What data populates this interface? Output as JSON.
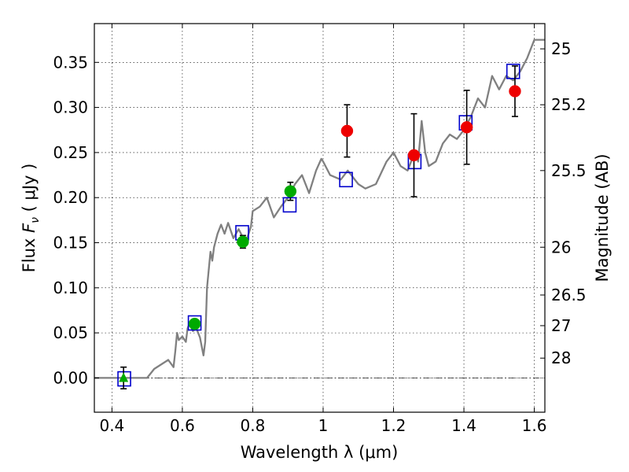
{
  "chart_data": {
    "type": "scatter",
    "xlabel": "Wavelength  λ (μm)",
    "ylabel_prefix": "Flux ",
    "ylabel_symbol": "F",
    "ylabel_subscript": "ν",
    "ylabel_suffix": "  ( μJy )",
    "y2label": "Magnitude (AB)",
    "xlim": [
      0.35,
      1.63
    ],
    "ylim": [
      -0.038,
      0.393
    ],
    "grid": true,
    "x_ticks": [
      {
        "value": 0.4,
        "label": "0.4"
      },
      {
        "value": 0.6,
        "label": "0.6"
      },
      {
        "value": 0.8,
        "label": "0.8"
      },
      {
        "value": 1.0,
        "label": "1"
      },
      {
        "value": 1.2,
        "label": "1.2"
      },
      {
        "value": 1.4,
        "label": "1.4"
      },
      {
        "value": 1.6,
        "label": "1.6"
      }
    ],
    "y_ticks": [
      {
        "value": 0.0,
        "label": "0.00"
      },
      {
        "value": 0.05,
        "label": "0.05"
      },
      {
        "value": 0.1,
        "label": "0.10"
      },
      {
        "value": 0.15,
        "label": "0.15"
      },
      {
        "value": 0.2,
        "label": "0.20"
      },
      {
        "value": 0.25,
        "label": "0.25"
      },
      {
        "value": 0.3,
        "label": "0.30"
      },
      {
        "value": 0.35,
        "label": "0.35"
      }
    ],
    "y2_ticks": [
      {
        "label": "25",
        "flux": 0.365
      },
      {
        "label": "25.2",
        "flux": 0.303
      },
      {
        "label": "25.5",
        "flux": 0.23
      },
      {
        "label": "26",
        "flux": 0.145
      },
      {
        "label": "26.5",
        "flux": 0.092
      },
      {
        "label": "27",
        "flux": 0.058
      },
      {
        "label": "28",
        "flux": 0.022
      }
    ],
    "zero_line": 0.0,
    "series": [
      {
        "name": "Model spectrum",
        "kind": "line",
        "color": "#808080",
        "x": [
          0.35,
          0.5,
          0.52,
          0.56,
          0.575,
          0.58,
          0.585,
          0.59,
          0.6,
          0.61,
          0.615,
          0.62,
          0.63,
          0.64,
          0.65,
          0.66,
          0.665,
          0.67,
          0.68,
          0.685,
          0.69,
          0.7,
          0.71,
          0.72,
          0.73,
          0.745,
          0.76,
          0.78,
          0.795,
          0.8,
          0.82,
          0.84,
          0.86,
          0.88,
          0.9,
          0.92,
          0.94,
          0.96,
          0.98,
          0.995,
          1.0,
          1.02,
          1.05,
          1.07,
          1.1,
          1.12,
          1.15,
          1.18,
          1.2,
          1.22,
          1.24,
          1.26,
          1.27,
          1.28,
          1.29,
          1.3,
          1.32,
          1.34,
          1.36,
          1.38,
          1.4,
          1.42,
          1.44,
          1.46,
          1.48,
          1.5,
          1.52,
          1.54,
          1.56,
          1.58,
          1.6,
          1.63
        ],
        "y": [
          0.0,
          0.0,
          0.01,
          0.02,
          0.012,
          0.03,
          0.05,
          0.042,
          0.046,
          0.04,
          0.055,
          0.06,
          0.052,
          0.055,
          0.045,
          0.025,
          0.04,
          0.1,
          0.14,
          0.13,
          0.145,
          0.16,
          0.17,
          0.16,
          0.172,
          0.155,
          0.165,
          0.15,
          0.168,
          0.185,
          0.19,
          0.2,
          0.178,
          0.19,
          0.2,
          0.215,
          0.225,
          0.205,
          0.23,
          0.243,
          0.24,
          0.225,
          0.22,
          0.23,
          0.215,
          0.21,
          0.215,
          0.24,
          0.25,
          0.235,
          0.23,
          0.25,
          0.24,
          0.285,
          0.25,
          0.235,
          0.24,
          0.26,
          0.27,
          0.265,
          0.275,
          0.29,
          0.31,
          0.3,
          0.335,
          0.32,
          0.335,
          0.33,
          0.34,
          0.355,
          0.375,
          0.375
        ]
      },
      {
        "name": "Model photometry",
        "kind": "open-square",
        "color": "#0000cc",
        "x": [
          0.435,
          0.635,
          0.77,
          0.905,
          1.065,
          1.26,
          1.405,
          1.54
        ],
        "y": [
          -0.001,
          0.061,
          0.161,
          0.192,
          0.22,
          0.24,
          0.283,
          0.34
        ]
      },
      {
        "name": "Observed optical",
        "kind": "filled-circle",
        "color": "#00aa00",
        "x": [
          0.635,
          0.772,
          0.907
        ],
        "y": [
          0.06,
          0.151,
          0.207
        ],
        "err": [
          0.005,
          0.007,
          0.01
        ]
      },
      {
        "name": "Observed optical (triangle)",
        "kind": "filled-triangle",
        "color": "#00aa00",
        "x": [
          0.433
        ],
        "y": [
          0.0
        ],
        "err": [
          0.012
        ]
      },
      {
        "name": "Observed near-IR",
        "kind": "filled-circle",
        "color": "#ee0000",
        "x": [
          1.068,
          1.258,
          1.408,
          1.545
        ],
        "y": [
          0.274,
          0.247,
          0.278,
          0.318
        ],
        "err": [
          0.029,
          0.046,
          0.041,
          0.028
        ]
      }
    ]
  }
}
